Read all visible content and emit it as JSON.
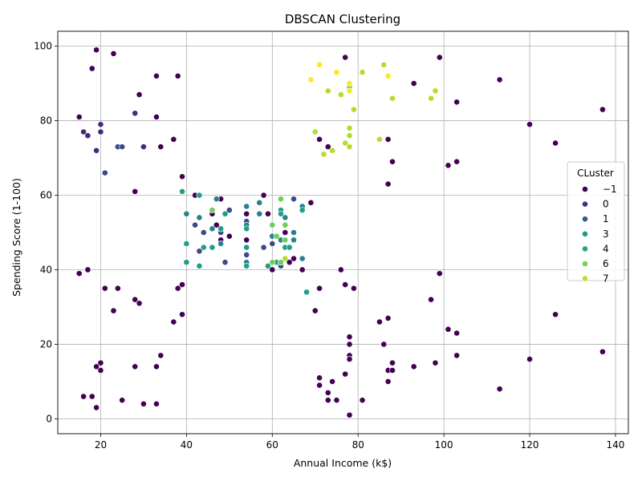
{
  "chart_data": {
    "type": "scatter",
    "title": "DBSCAN Clustering",
    "xlabel": "Annual Income (k$)",
    "ylabel": "Spending Score (1-100)",
    "xlim": [
      10,
      143
    ],
    "ylim": [
      -4,
      104
    ],
    "xticks": [
      20,
      40,
      60,
      80,
      100,
      120,
      140
    ],
    "yticks": [
      0,
      20,
      40,
      60,
      80,
      100
    ],
    "grid": true,
    "legend": {
      "title": "CLuster",
      "placement": "center-right",
      "entries": [
        {
          "label": "−1",
          "color": "#440154"
        },
        {
          "label": "0",
          "color": "#46327e"
        },
        {
          "label": "1",
          "color": "#365c8d"
        },
        {
          "label": "3",
          "color": "#1f9a8a"
        },
        {
          "label": "4",
          "color": "#21a585"
        },
        {
          "label": "6",
          "color": "#7ad151"
        },
        {
          "label": "7",
          "color": "#bddf26"
        }
      ]
    },
    "cluster_colors": {
      "-1": "#440154",
      "0": "#482878",
      "1": "#3e4a89",
      "2": "#31688e",
      "3": "#26828e",
      "4": "#1f9e89",
      "5": "#35b779",
      "6": "#6ece58",
      "7": "#b5de2b",
      "8": "#fde725"
    },
    "series": [
      {
        "cluster": -1,
        "points": [
          [
            15,
            39
          ],
          [
            15,
            81
          ],
          [
            16,
            6
          ],
          [
            17,
            40
          ],
          [
            18,
            6
          ],
          [
            18,
            94
          ],
          [
            19,
            3
          ],
          [
            19,
            14
          ],
          [
            19,
            99
          ],
          [
            20,
            15
          ],
          [
            20,
            13
          ],
          [
            21,
            35
          ],
          [
            23,
            29
          ],
          [
            23,
            98
          ],
          [
            24,
            35
          ],
          [
            25,
            5
          ],
          [
            28,
            14
          ],
          [
            28,
            32
          ],
          [
            28,
            61
          ],
          [
            29,
            31
          ],
          [
            29,
            87
          ],
          [
            30,
            4
          ],
          [
            33,
            4
          ],
          [
            33,
            14
          ],
          [
            33,
            81
          ],
          [
            33,
            92
          ],
          [
            34,
            17
          ],
          [
            34,
            73
          ],
          [
            37,
            26
          ],
          [
            37,
            75
          ],
          [
            38,
            35
          ],
          [
            38,
            92
          ],
          [
            39,
            36
          ],
          [
            39,
            28
          ],
          [
            39,
            65
          ],
          [
            42,
            60
          ],
          [
            46,
            55
          ],
          [
            47,
            52
          ],
          [
            48,
            48
          ],
          [
            48,
            59
          ],
          [
            50,
            49
          ],
          [
            54,
            55
          ],
          [
            54,
            48
          ],
          [
            58,
            60
          ],
          [
            59,
            55
          ],
          [
            60,
            40
          ],
          [
            63,
            50
          ],
          [
            64,
            42
          ],
          [
            65,
            43
          ],
          [
            67,
            40
          ],
          [
            69,
            58
          ],
          [
            70,
            29
          ],
          [
            71,
            75
          ],
          [
            71,
            35
          ],
          [
            71,
            11
          ],
          [
            71,
            9
          ],
          [
            73,
            73
          ],
          [
            73,
            7
          ],
          [
            73,
            5
          ],
          [
            74,
            10
          ],
          [
            75,
            5
          ],
          [
            76,
            40
          ],
          [
            77,
            36
          ],
          [
            77,
            12
          ],
          [
            77,
            97
          ],
          [
            78,
            22
          ],
          [
            78,
            20
          ],
          [
            78,
            17
          ],
          [
            78,
            16
          ],
          [
            78,
            1
          ],
          [
            79,
            35
          ],
          [
            81,
            5
          ],
          [
            85,
            26
          ],
          [
            86,
            20
          ],
          [
            87,
            75
          ],
          [
            87,
            63
          ],
          [
            87,
            27
          ],
          [
            87,
            13
          ],
          [
            87,
            10
          ],
          [
            88,
            69
          ],
          [
            88,
            15
          ],
          [
            88,
            13
          ],
          [
            93,
            90
          ],
          [
            93,
            14
          ],
          [
            97,
            32
          ],
          [
            98,
            15
          ],
          [
            99,
            97
          ],
          [
            99,
            39
          ],
          [
            101,
            68
          ],
          [
            101,
            24
          ],
          [
            103,
            85
          ],
          [
            103,
            69
          ],
          [
            103,
            23
          ],
          [
            103,
            17
          ],
          [
            113,
            91
          ],
          [
            113,
            8
          ],
          [
            120,
            79
          ],
          [
            120,
            16
          ],
          [
            126,
            74
          ],
          [
            126,
            28
          ],
          [
            137,
            83
          ],
          [
            137,
            18
          ]
        ]
      },
      {
        "cluster": 0,
        "points": [
          [
            16,
            77
          ],
          [
            17,
            76
          ],
          [
            19,
            72
          ],
          [
            20,
            79
          ],
          [
            20,
            77
          ],
          [
            28,
            82
          ],
          [
            30,
            73
          ]
        ]
      },
      {
        "cluster": 1,
        "points": [
          [
            21,
            66
          ],
          [
            24,
            73
          ],
          [
            25,
            73
          ],
          [
            42,
            52
          ],
          [
            43,
            45
          ],
          [
            44,
            50
          ],
          [
            48,
            50
          ],
          [
            49,
            42
          ],
          [
            50,
            56
          ],
          [
            54,
            53
          ],
          [
            54,
            44
          ],
          [
            58,
            46
          ],
          [
            60,
            47
          ],
          [
            62,
            41
          ],
          [
            65,
            59
          ]
        ]
      },
      {
        "cluster": 3,
        "points": [
          [
            40,
            55
          ],
          [
            43,
            54
          ],
          [
            46,
            51
          ],
          [
            47,
            59
          ],
          [
            48,
            47
          ],
          [
            54,
            57
          ],
          [
            54,
            52
          ],
          [
            54,
            42
          ],
          [
            57,
            58
          ],
          [
            57,
            55
          ],
          [
            60,
            49
          ],
          [
            62,
            48
          ],
          [
            63,
            54
          ],
          [
            65,
            48
          ],
          [
            65,
            50
          ],
          [
            67,
            57
          ],
          [
            67,
            43
          ]
        ]
      },
      {
        "cluster": 4,
        "points": [
          [
            39,
            61
          ],
          [
            40,
            47
          ],
          [
            40,
            42
          ],
          [
            43,
            60
          ],
          [
            43,
            41
          ],
          [
            44,
            46
          ],
          [
            46,
            46
          ],
          [
            48,
            51
          ],
          [
            49,
            55
          ],
          [
            54,
            46
          ],
          [
            54,
            41
          ],
          [
            54,
            51
          ],
          [
            59,
            41
          ],
          [
            61,
            42
          ],
          [
            62,
            56
          ],
          [
            62,
            55
          ],
          [
            63,
            46
          ],
          [
            64,
            46
          ],
          [
            67,
            56
          ],
          [
            68,
            34
          ]
        ]
      },
      {
        "cluster": 6,
        "points": [
          [
            46,
            56
          ],
          [
            60,
            52
          ],
          [
            60,
            42
          ],
          [
            61,
            49
          ],
          [
            62,
            59
          ],
          [
            62,
            42
          ],
          [
            63,
            52
          ],
          [
            63,
            48
          ],
          [
            78,
            89
          ]
        ]
      },
      {
        "cluster": 7,
        "points": [
          [
            63,
            43
          ],
          [
            70,
            77
          ],
          [
            72,
            71
          ],
          [
            73,
            88
          ],
          [
            74,
            72
          ],
          [
            76,
            87
          ],
          [
            77,
            74
          ],
          [
            78,
            78
          ],
          [
            78,
            76
          ],
          [
            78,
            73
          ],
          [
            79,
            83
          ],
          [
            81,
            93
          ],
          [
            85,
            75
          ],
          [
            86,
            95
          ],
          [
            88,
            86
          ],
          [
            97,
            86
          ],
          [
            98,
            88
          ]
        ]
      },
      {
        "cluster": 8,
        "points": [
          [
            69,
            91
          ],
          [
            71,
            95
          ],
          [
            75,
            93
          ],
          [
            78,
            88
          ],
          [
            78,
            90
          ],
          [
            87,
            92
          ]
        ]
      }
    ]
  }
}
